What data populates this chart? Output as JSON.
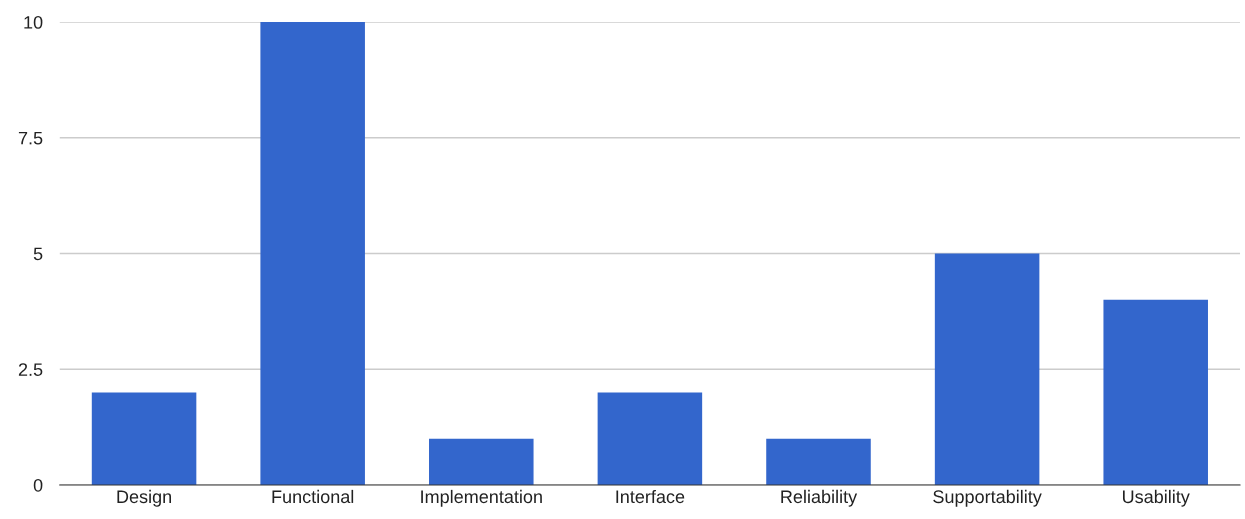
{
  "chart_data": {
    "type": "bar",
    "categories": [
      "Design",
      "Functional",
      "Implementation",
      "Interface",
      "Reliability",
      "Supportability",
      "Usability"
    ],
    "values": [
      2,
      10,
      1,
      2,
      1,
      5,
      4
    ],
    "color": "#3366cc",
    "ylim": [
      0,
      10
    ],
    "yticks": [
      0,
      2.5,
      5,
      7.5,
      10
    ],
    "grid": "y",
    "legend": false
  }
}
